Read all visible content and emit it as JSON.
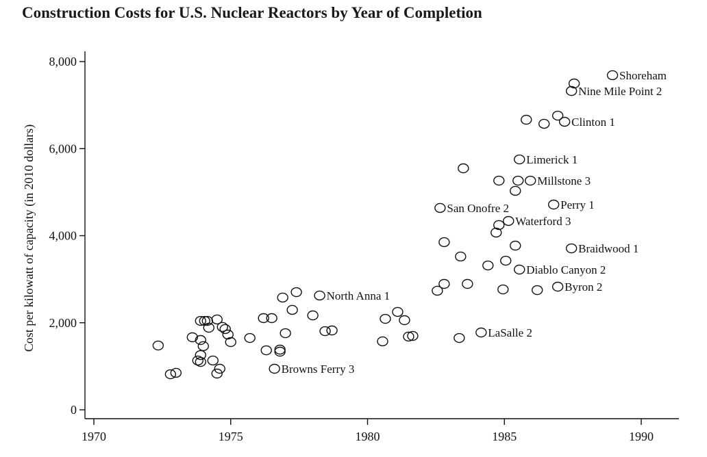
{
  "chart_data": {
    "type": "scatter",
    "title": "Construction Costs for U.S. Nuclear Reactors by Year of Completion",
    "xlabel": "",
    "ylabel": "Cost per kilowatt of capacity (in 2010 dollars)",
    "xlim": [
      1969.5,
      1991.4
    ],
    "ylim": [
      0,
      8300
    ],
    "x_ticks": [
      1970,
      1975,
      1980,
      1985,
      1990
    ],
    "x_tick_labels": [
      "1970",
      "1975",
      "1980",
      "1985",
      "1990"
    ],
    "y_ticks": [
      0,
      2000,
      4000,
      6000,
      8000
    ],
    "y_tick_labels": [
      "0",
      "2,000",
      "4,000",
      "6,000",
      "8,000"
    ],
    "grid": false,
    "legend": "none",
    "marker": "hollow-circle",
    "points": [
      {
        "x": 1972.35,
        "y": 1477
      },
      {
        "x": 1972.8,
        "y": 817
      },
      {
        "x": 1973.0,
        "y": 849
      },
      {
        "x": 1973.6,
        "y": 1666
      },
      {
        "x": 1973.9,
        "y": 1603
      },
      {
        "x": 1973.9,
        "y": 2043
      },
      {
        "x": 1974.05,
        "y": 2043
      },
      {
        "x": 1974.0,
        "y": 1462
      },
      {
        "x": 1973.9,
        "y": 1257
      },
      {
        "x": 1973.8,
        "y": 1132
      },
      {
        "x": 1973.9,
        "y": 1100
      },
      {
        "x": 1974.15,
        "y": 2043
      },
      {
        "x": 1974.2,
        "y": 1886
      },
      {
        "x": 1974.35,
        "y": 1132
      },
      {
        "x": 1974.5,
        "y": 2075
      },
      {
        "x": 1974.5,
        "y": 833
      },
      {
        "x": 1974.6,
        "y": 943
      },
      {
        "x": 1974.7,
        "y": 1902
      },
      {
        "x": 1974.8,
        "y": 1855
      },
      {
        "x": 1974.9,
        "y": 1729
      },
      {
        "x": 1975.0,
        "y": 1556
      },
      {
        "x": 1975.7,
        "y": 1650
      },
      {
        "x": 1976.2,
        "y": 2106
      },
      {
        "x": 1976.3,
        "y": 1367
      },
      {
        "x": 1976.5,
        "y": 2106
      },
      {
        "x": 1976.8,
        "y": 1383
      },
      {
        "x": 1976.8,
        "y": 1336
      },
      {
        "x": 1976.6,
        "y": 943,
        "label": "Browns Ferry 3"
      },
      {
        "x": 1976.9,
        "y": 2578
      },
      {
        "x": 1977.0,
        "y": 1760
      },
      {
        "x": 1977.25,
        "y": 2295
      },
      {
        "x": 1977.4,
        "y": 2703
      },
      {
        "x": 1978.0,
        "y": 2169
      },
      {
        "x": 1978.25,
        "y": 2625,
        "label": "North Anna 1"
      },
      {
        "x": 1978.45,
        "y": 1807
      },
      {
        "x": 1978.7,
        "y": 1823
      },
      {
        "x": 1980.55,
        "y": 1572
      },
      {
        "x": 1980.65,
        "y": 2090
      },
      {
        "x": 1981.1,
        "y": 2248
      },
      {
        "x": 1981.35,
        "y": 2059
      },
      {
        "x": 1981.5,
        "y": 1682
      },
      {
        "x": 1981.65,
        "y": 1697
      },
      {
        "x": 1982.55,
        "y": 2735
      },
      {
        "x": 1982.65,
        "y": 4637,
        "label": "San Onofre 2"
      },
      {
        "x": 1982.8,
        "y": 2892
      },
      {
        "x": 1982.8,
        "y": 3851
      },
      {
        "x": 1983.35,
        "y": 1650
      },
      {
        "x": 1983.4,
        "y": 3521
      },
      {
        "x": 1983.65,
        "y": 2892
      },
      {
        "x": 1983.5,
        "y": 5548
      },
      {
        "x": 1984.15,
        "y": 1776,
        "label": "LaSalle 2"
      },
      {
        "x": 1984.4,
        "y": 3316
      },
      {
        "x": 1984.7,
        "y": 4071
      },
      {
        "x": 1984.8,
        "y": 4244
      },
      {
        "x": 1984.8,
        "y": 5265
      },
      {
        "x": 1984.95,
        "y": 2766
      },
      {
        "x": 1985.05,
        "y": 3426
      },
      {
        "x": 1985.15,
        "y": 4338,
        "label": "Waterford 3"
      },
      {
        "x": 1985.4,
        "y": 5030
      },
      {
        "x": 1985.4,
        "y": 3772
      },
      {
        "x": 1985.5,
        "y": 5265
      },
      {
        "x": 1985.55,
        "y": 3222,
        "label": "Diablo Canyon 2"
      },
      {
        "x": 1985.55,
        "y": 5752,
        "label": "Limerick 1"
      },
      {
        "x": 1985.95,
        "y": 5265,
        "label": "Millstone 3"
      },
      {
        "x": 1985.8,
        "y": 6664
      },
      {
        "x": 1986.2,
        "y": 2750
      },
      {
        "x": 1986.45,
        "y": 6570
      },
      {
        "x": 1986.8,
        "y": 4715,
        "label": "Perry 1"
      },
      {
        "x": 1986.95,
        "y": 6758
      },
      {
        "x": 1986.95,
        "y": 2829,
        "label": "Byron 2"
      },
      {
        "x": 1987.2,
        "y": 6617,
        "label": "Clinton 1"
      },
      {
        "x": 1987.45,
        "y": 3709,
        "label": "Braidwood 1"
      },
      {
        "x": 1987.45,
        "y": 7324,
        "label": "Nine Mile Point 2"
      },
      {
        "x": 1987.55,
        "y": 7497
      },
      {
        "x": 1988.95,
        "y": 7686,
        "label": "Shoreham"
      }
    ]
  }
}
